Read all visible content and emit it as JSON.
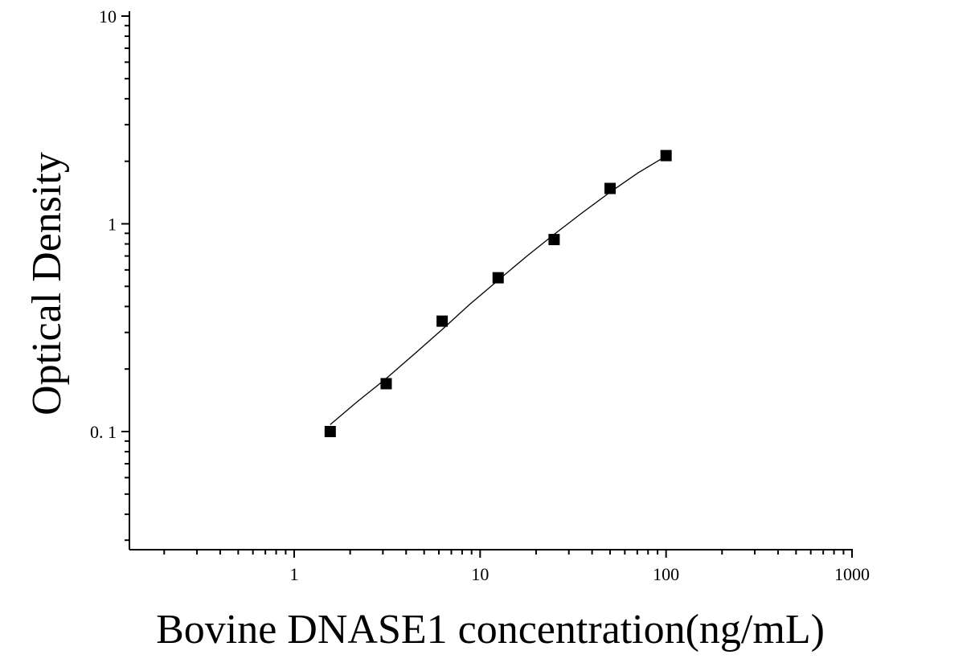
{
  "chart_data": {
    "type": "scatter",
    "title": "",
    "xlabel": "Bovine DNASE1 concentration(ng/mL)",
    "ylabel": "Optical Density",
    "x_scale": "log",
    "y_scale": "log",
    "xlim": [
      0.13,
      1000
    ],
    "ylim": [
      0.027,
      10
    ],
    "grid": false,
    "legend": "none",
    "x_ticks": [
      {
        "value": 1,
        "label": "1"
      },
      {
        "value": 10,
        "label": "10"
      },
      {
        "value": 100,
        "label": "100"
      },
      {
        "value": 1000,
        "label": "1000"
      }
    ],
    "y_ticks": [
      {
        "value": 0.1,
        "label": "0. 1"
      },
      {
        "value": 1,
        "label": "1"
      },
      {
        "value": 10,
        "label": "10"
      }
    ],
    "series": [
      {
        "marker": "square",
        "color": "#000000",
        "points": [
          {
            "x": 1.5625,
            "y": 0.1
          },
          {
            "x": 3.125,
            "y": 0.17
          },
          {
            "x": 6.25,
            "y": 0.34
          },
          {
            "x": 12.5,
            "y": 0.55
          },
          {
            "x": 25,
            "y": 0.84
          },
          {
            "x": 50,
            "y": 1.48
          },
          {
            "x": 100,
            "y": 2.13
          }
        ],
        "fit": {
          "type": "curve",
          "color": "#000000",
          "points": [
            {
              "x": 1.5625,
              "y": 0.108
            },
            {
              "x": 2.2,
              "y": 0.14
            },
            {
              "x": 3.125,
              "y": 0.18
            },
            {
              "x": 4.4,
              "y": 0.235
            },
            {
              "x": 6.25,
              "y": 0.31
            },
            {
              "x": 8.8,
              "y": 0.41
            },
            {
              "x": 12.5,
              "y": 0.535
            },
            {
              "x": 17.7,
              "y": 0.695
            },
            {
              "x": 25,
              "y": 0.89
            },
            {
              "x": 35.4,
              "y": 1.13
            },
            {
              "x": 50,
              "y": 1.42
            },
            {
              "x": 70.7,
              "y": 1.76
            },
            {
              "x": 100,
              "y": 2.12
            }
          ]
        }
      }
    ]
  }
}
